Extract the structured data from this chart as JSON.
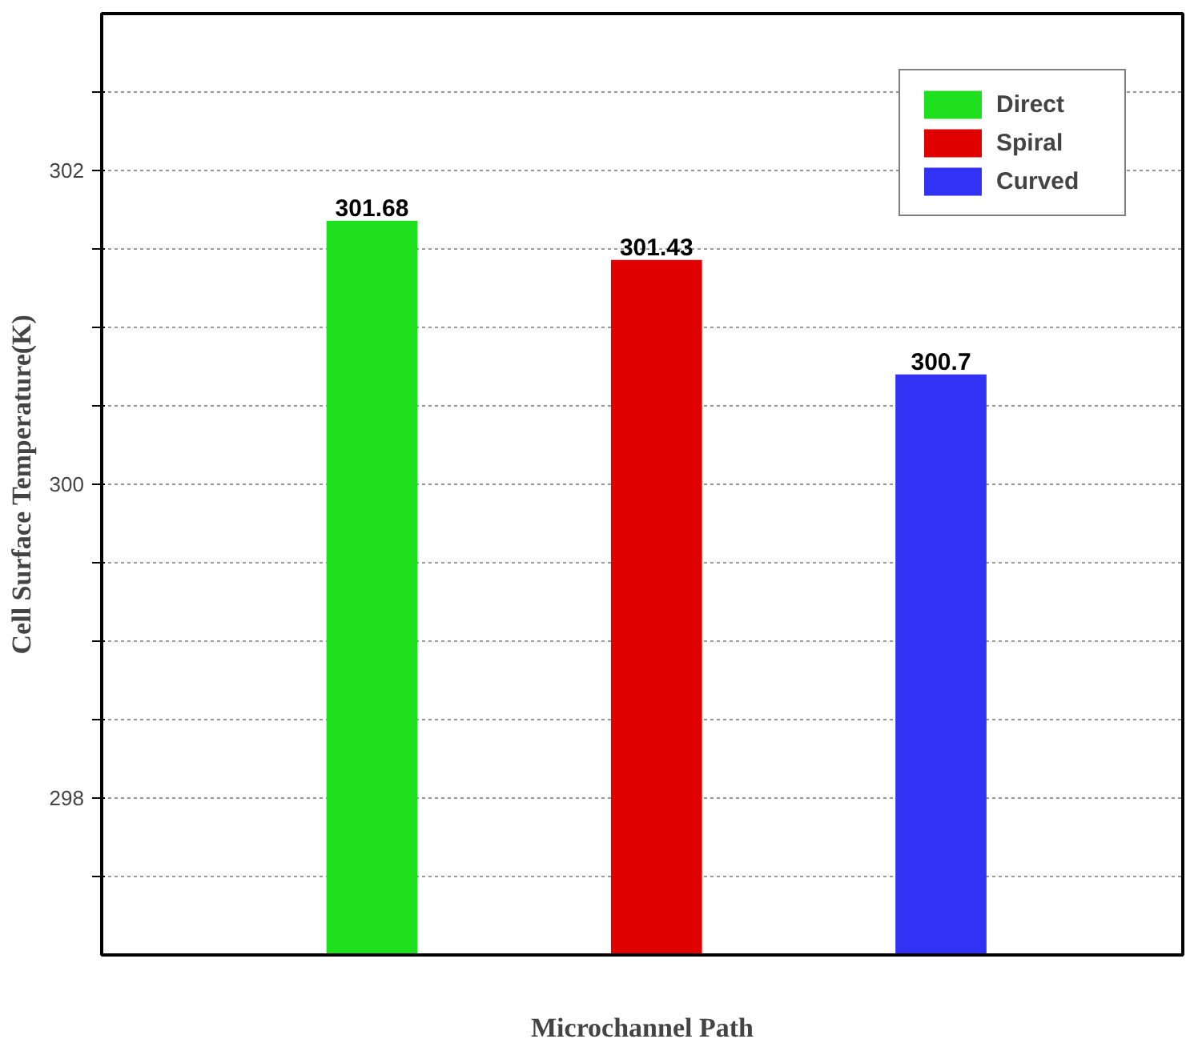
{
  "chart_data": {
    "type": "bar",
    "xlabel": "Microchannel Path",
    "ylabel": "Cell Surface Temperature(K)",
    "categories": [
      null,
      null,
      null
    ],
    "series": [
      {
        "name": "Direct",
        "color": "#1ee01e",
        "values": [
          301.68,
          null,
          null
        ]
      },
      {
        "name": "Spiral",
        "color": "#e00000",
        "values": [
          null,
          301.43,
          null
        ]
      },
      {
        "name": "Curved",
        "color": "#3232f5",
        "values": [
          null,
          null,
          300.7
        ]
      }
    ],
    "ylim": [
      297,
      303
    ],
    "yticks": [
      {
        "value": 297.5,
        "label": null
      },
      298,
      {
        "value": 298.5,
        "label": null
      },
      {
        "value": 299,
        "label": null
      },
      {
        "value": 299.5,
        "label": null
      },
      300,
      {
        "value": 300.5,
        "label": null
      },
      {
        "value": 301,
        "label": null
      },
      {
        "value": 301.5,
        "label": null
      },
      302,
      {
        "value": 302.5,
        "label": null
      }
    ],
    "grid": "y",
    "legend": "top right",
    "data_labels": true
  }
}
